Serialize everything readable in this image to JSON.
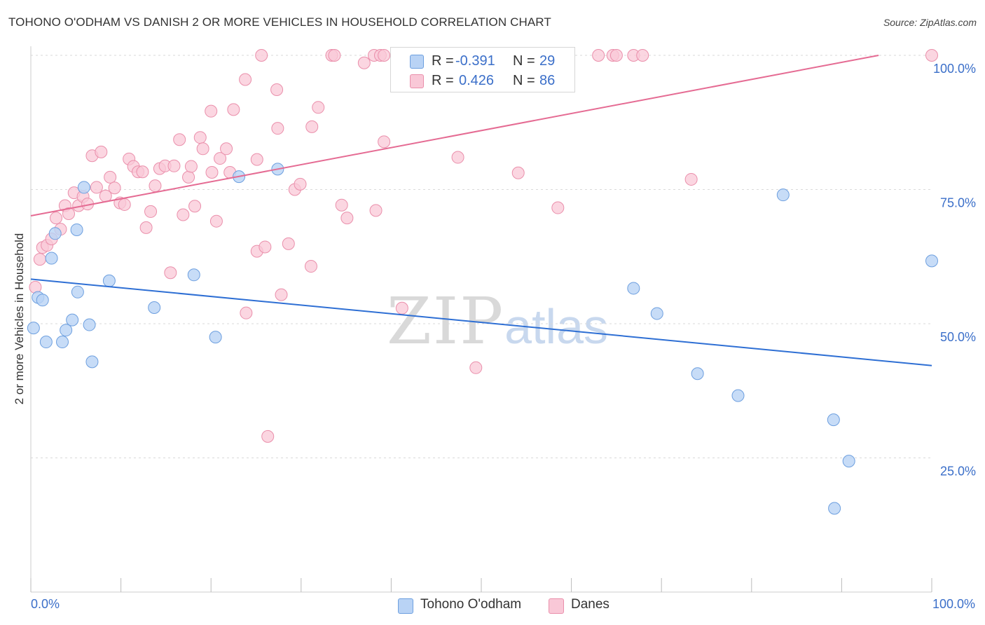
{
  "header": {
    "title": "TOHONO O'ODHAM VS DANISH 2 OR MORE VEHICLES IN HOUSEHOLD CORRELATION CHART",
    "source": "Source: ZipAtlas.com"
  },
  "watermark": {
    "zip": "ZIP",
    "atlas": "atlas"
  },
  "legend": {
    "rows": [
      {
        "r_label": "R =",
        "r_value": "-0.391",
        "n_label": "N =",
        "n_value": "29"
      },
      {
        "r_label": "R =",
        "r_value": "0.426",
        "n_label": "N =",
        "n_value": "86"
      }
    ]
  },
  "bottom_legend": {
    "items": [
      "Tohono O'odham",
      "Danes"
    ]
  },
  "colors": {
    "tohono_fill": "#b9d3f5",
    "tohono_stroke": "#6d9fdf",
    "tohono_line": "#2e6fd4",
    "danes_fill": "#f9c8d7",
    "danes_stroke": "#ea8fab",
    "danes_line": "#e56b93",
    "grid": "#d9d9d9",
    "axis_text": "#3b6fc9"
  },
  "chart_data": {
    "type": "scatter",
    "title": "TOHONO O'ODHAM VS DANISH 2 OR MORE VEHICLES IN HOUSEHOLD CORRELATION CHART",
    "xlabel": "",
    "ylabel": "2 or more Vehicles in Household",
    "xlim": [
      0,
      100
    ],
    "ylim": [
      0,
      100
    ],
    "x_tick_labels": [
      "0.0%",
      "100.0%"
    ],
    "y_ticks": [
      25,
      50,
      75,
      100
    ],
    "y_tick_labels": [
      "25.0%",
      "50.0%",
      "75.0%",
      "100.0%"
    ],
    "series": [
      {
        "name": "Tohono O'odham",
        "r": -0.391,
        "n": 29,
        "trend": [
          [
            0,
            58.3
          ],
          [
            100,
            42.2
          ]
        ],
        "points": [
          [
            0.3,
            49.2
          ],
          [
            0.8,
            54.9
          ],
          [
            1.3,
            54.4
          ],
          [
            1.7,
            46.6
          ],
          [
            2.3,
            62.2
          ],
          [
            2.7,
            66.8
          ],
          [
            3.5,
            46.6
          ],
          [
            3.9,
            48.8
          ],
          [
            4.6,
            50.7
          ],
          [
            5.1,
            67.5
          ],
          [
            5.2,
            55.9
          ],
          [
            5.9,
            75.4
          ],
          [
            6.5,
            49.8
          ],
          [
            6.8,
            42.9
          ],
          [
            8.7,
            58.0
          ],
          [
            13.7,
            53.0
          ],
          [
            18.1,
            59.1
          ],
          [
            20.5,
            47.5
          ],
          [
            23.1,
            77.4
          ],
          [
            27.4,
            78.8
          ],
          [
            66.9,
            56.6
          ],
          [
            69.5,
            51.9
          ],
          [
            74.0,
            40.7
          ],
          [
            78.5,
            36.6
          ],
          [
            83.5,
            74.0
          ],
          [
            89.1,
            32.1
          ],
          [
            90.8,
            24.4
          ],
          [
            89.2,
            15.6
          ],
          [
            100.0,
            61.7
          ]
        ]
      },
      {
        "name": "Danes",
        "r": 0.426,
        "n": 86,
        "trend": [
          [
            0,
            70.1
          ],
          [
            94.1,
            100
          ]
        ],
        "points": [
          [
            0.5,
            56.8
          ],
          [
            1.0,
            62.0
          ],
          [
            1.3,
            64.2
          ],
          [
            1.8,
            64.6
          ],
          [
            2.3,
            65.8
          ],
          [
            2.8,
            69.7
          ],
          [
            3.3,
            67.6
          ],
          [
            3.8,
            72.0
          ],
          [
            4.2,
            70.5
          ],
          [
            4.8,
            74.4
          ],
          [
            5.3,
            72.0
          ],
          [
            5.8,
            73.7
          ],
          [
            6.3,
            72.3
          ],
          [
            6.8,
            81.3
          ],
          [
            7.3,
            75.4
          ],
          [
            7.8,
            82.0
          ],
          [
            8.3,
            73.8
          ],
          [
            8.8,
            77.3
          ],
          [
            9.3,
            75.3
          ],
          [
            9.9,
            72.5
          ],
          [
            10.4,
            72.2
          ],
          [
            10.9,
            80.7
          ],
          [
            11.4,
            79.3
          ],
          [
            11.9,
            78.3
          ],
          [
            12.4,
            78.3
          ],
          [
            12.8,
            67.9
          ],
          [
            13.3,
            70.9
          ],
          [
            13.8,
            75.7
          ],
          [
            14.3,
            78.9
          ],
          [
            14.9,
            79.4
          ],
          [
            15.5,
            59.5
          ],
          [
            15.9,
            79.4
          ],
          [
            16.5,
            84.3
          ],
          [
            16.9,
            70.3
          ],
          [
            17.5,
            77.3
          ],
          [
            17.8,
            79.3
          ],
          [
            18.2,
            71.9
          ],
          [
            18.8,
            84.7
          ],
          [
            19.1,
            82.6
          ],
          [
            20.0,
            89.6
          ],
          [
            20.1,
            78.2
          ],
          [
            20.6,
            69.1
          ],
          [
            21.0,
            80.8
          ],
          [
            21.7,
            82.6
          ],
          [
            22.1,
            78.2
          ],
          [
            22.5,
            89.9
          ],
          [
            23.8,
            95.5
          ],
          [
            23.9,
            52.0
          ],
          [
            25.1,
            80.6
          ],
          [
            25.1,
            63.5
          ],
          [
            25.6,
            100.0
          ],
          [
            26.0,
            64.3
          ],
          [
            27.3,
            93.6
          ],
          [
            27.4,
            86.4
          ],
          [
            27.8,
            55.4
          ],
          [
            26.3,
            29.0
          ],
          [
            28.6,
            64.9
          ],
          [
            29.3,
            75.0
          ],
          [
            29.9,
            76.0
          ],
          [
            31.1,
            60.7
          ],
          [
            31.2,
            86.7
          ],
          [
            31.9,
            90.3
          ],
          [
            33.4,
            100.0
          ],
          [
            33.7,
            100.0
          ],
          [
            34.5,
            72.1
          ],
          [
            35.1,
            69.7
          ],
          [
            37.0,
            98.6
          ],
          [
            38.1,
            100.0
          ],
          [
            38.3,
            71.1
          ],
          [
            38.8,
            100.0
          ],
          [
            39.2,
            100.0
          ],
          [
            39.2,
            83.9
          ],
          [
            41.2,
            52.9
          ],
          [
            47.4,
            81.0
          ],
          [
            49.4,
            41.8
          ],
          [
            52.4,
            100.0
          ],
          [
            52.8,
            100.0
          ],
          [
            54.1,
            78.1
          ],
          [
            58.5,
            71.6
          ],
          [
            63.0,
            100.0
          ],
          [
            64.6,
            100.0
          ],
          [
            65.0,
            100.0
          ],
          [
            66.9,
            100.0
          ],
          [
            67.9,
            100.0
          ],
          [
            73.3,
            76.9
          ],
          [
            100.0,
            100.0
          ]
        ]
      }
    ]
  }
}
